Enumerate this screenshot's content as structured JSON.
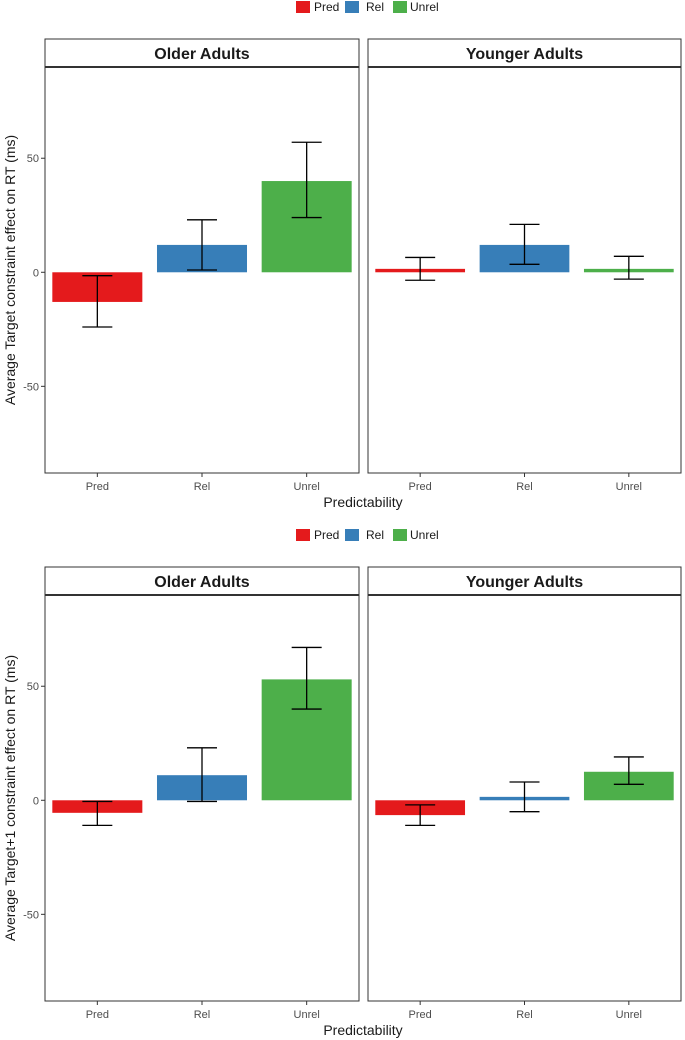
{
  "chart_data": [
    {
      "type": "bar",
      "xlabel": "Predictability",
      "ylabel": "Average Target constraint effect on RT (ms)",
      "ylim": [
        -88,
        90
      ],
      "yticks": [
        -50,
        0,
        50
      ],
      "categories": [
        "Pred",
        "Rel",
        "Unrel"
      ],
      "legend": {
        "position": "top",
        "items": [
          {
            "label": "Pred",
            "color": "#E41A1C"
          },
          {
            "label": "Rel",
            "color": "#377EB8"
          },
          {
            "label": "Unrel",
            "color": "#4DAF4A"
          }
        ]
      },
      "panels": [
        {
          "title": "Older Adults",
          "values": [
            -13,
            12,
            40
          ],
          "error_low": [
            -24,
            1,
            24
          ],
          "error_high": [
            -1.5,
            23,
            57
          ]
        },
        {
          "title": "Younger Adults",
          "values": [
            1.5,
            12,
            1.5
          ],
          "error_low": [
            -3.5,
            3.5,
            -3
          ],
          "error_high": [
            6.5,
            21,
            7
          ]
        }
      ]
    },
    {
      "type": "bar",
      "xlabel": "Predictability",
      "ylabel": "Average Target+1 constraint effect on RT (ms)",
      "ylim": [
        -88,
        90
      ],
      "yticks": [
        -50,
        0,
        50
      ],
      "categories": [
        "Pred",
        "Rel",
        "Unrel"
      ],
      "legend": {
        "position": "top",
        "items": [
          {
            "label": "Pred",
            "color": "#E41A1C"
          },
          {
            "label": "Rel",
            "color": "#377EB8"
          },
          {
            "label": "Unrel",
            "color": "#4DAF4A"
          }
        ]
      },
      "panels": [
        {
          "title": "Older Adults",
          "values": [
            -5.5,
            11,
            53
          ],
          "error_low": [
            -11,
            -0.5,
            40
          ],
          "error_high": [
            -0.5,
            23,
            67
          ]
        },
        {
          "title": "Younger Adults",
          "values": [
            -6.5,
            1.5,
            12.5
          ],
          "error_low": [
            -11,
            -5,
            7
          ],
          "error_high": [
            -2,
            8,
            19
          ]
        }
      ]
    }
  ]
}
